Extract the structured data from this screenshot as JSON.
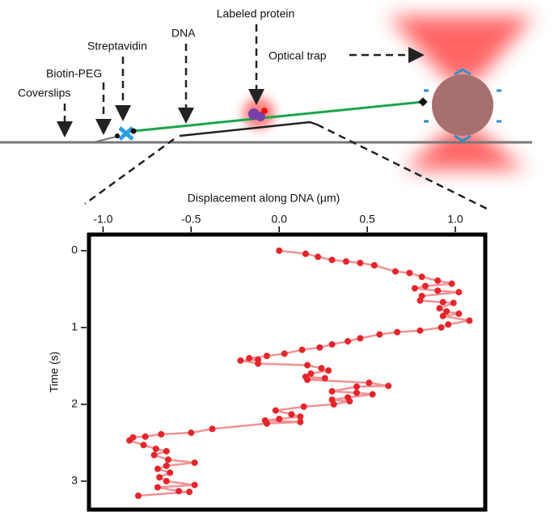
{
  "diagram": {
    "labels": [
      "Labeled protein",
      "DNA",
      "Streptavidin",
      "Optical trap",
      "Biotin-PEG",
      "Coverslips"
    ]
  },
  "chart_data": {
    "type": "scatter",
    "x_label": "Displacement along DNA (µm)",
    "y_label": "Time (s)",
    "xlim": [
      -1.08,
      1.17
    ],
    "ylim": [
      -0.21,
      3.37
    ],
    "xticks": [
      {
        "value": -1.0,
        "label": "-1.0"
      },
      -0.5,
      {
        "value": 0.0,
        "label": "0.0"
      },
      0.5,
      {
        "value": 1.0,
        "label": "1.0"
      }
    ],
    "yticks": [
      0,
      1,
      2,
      3
    ],
    "x": [
      0.0,
      0.15,
      0.22,
      0.3,
      0.38,
      0.46,
      0.54,
      0.66,
      0.74,
      0.81,
      0.9,
      0.98,
      0.83,
      0.77,
      0.9,
      1.02,
      0.81,
      0.8,
      0.93,
      0.99,
      0.91,
      0.95,
      1.02,
      0.93,
      1.08,
      0.96,
      0.92,
      0.8,
      0.67,
      0.57,
      0.46,
      0.39,
      0.3,
      0.23,
      0.13,
      0.03,
      -0.07,
      -0.17,
      -0.12,
      -0.22,
      -0.12,
      0.16,
      0.24,
      0.28,
      0.18,
      0.15,
      0.26,
      0.16,
      0.51,
      0.62,
      0.44,
      0.3,
      0.44,
      0.53,
      0.39,
      0.3,
      0.4,
      0.31,
      0.14,
      -0.02,
      0.07,
      0.12,
      0.0,
      -0.08,
      0.12,
      -0.07,
      -0.38,
      -0.5,
      -0.67,
      -0.76,
      -0.83,
      -0.85,
      -0.77,
      -0.7,
      -0.64,
      -0.71,
      -0.63,
      -0.48,
      -0.64,
      -0.69,
      -0.62,
      -0.68,
      -0.64,
      -0.48,
      -0.69,
      -0.57,
      -0.51,
      -0.8
    ],
    "series": [
      {
        "color": "#e3262b",
        "values": [
          0.0,
          0.04,
          0.08,
          0.12,
          0.14,
          0.16,
          0.19,
          0.27,
          0.29,
          0.34,
          0.39,
          0.43,
          0.46,
          0.49,
          0.52,
          0.54,
          0.59,
          0.65,
          0.67,
          0.68,
          0.75,
          0.79,
          0.82,
          0.85,
          0.91,
          0.96,
          1.0,
          1.04,
          1.06,
          1.09,
          1.14,
          1.18,
          1.22,
          1.26,
          1.29,
          1.34,
          1.37,
          1.4,
          1.42,
          1.43,
          1.47,
          1.49,
          1.53,
          1.56,
          1.6,
          1.64,
          1.66,
          1.68,
          1.72,
          1.76,
          1.77,
          1.83,
          1.85,
          1.87,
          1.91,
          1.94,
          1.96,
          2.0,
          2.03,
          2.08,
          2.13,
          2.16,
          2.19,
          2.21,
          2.23,
          2.25,
          2.32,
          2.37,
          2.39,
          2.42,
          2.43,
          2.47,
          2.53,
          2.58,
          2.61,
          2.66,
          2.72,
          2.76,
          2.8,
          2.84,
          2.89,
          2.95,
          3.0,
          3.05,
          3.08,
          3.13,
          3.14,
          3.19
        ]
      }
    ]
  }
}
